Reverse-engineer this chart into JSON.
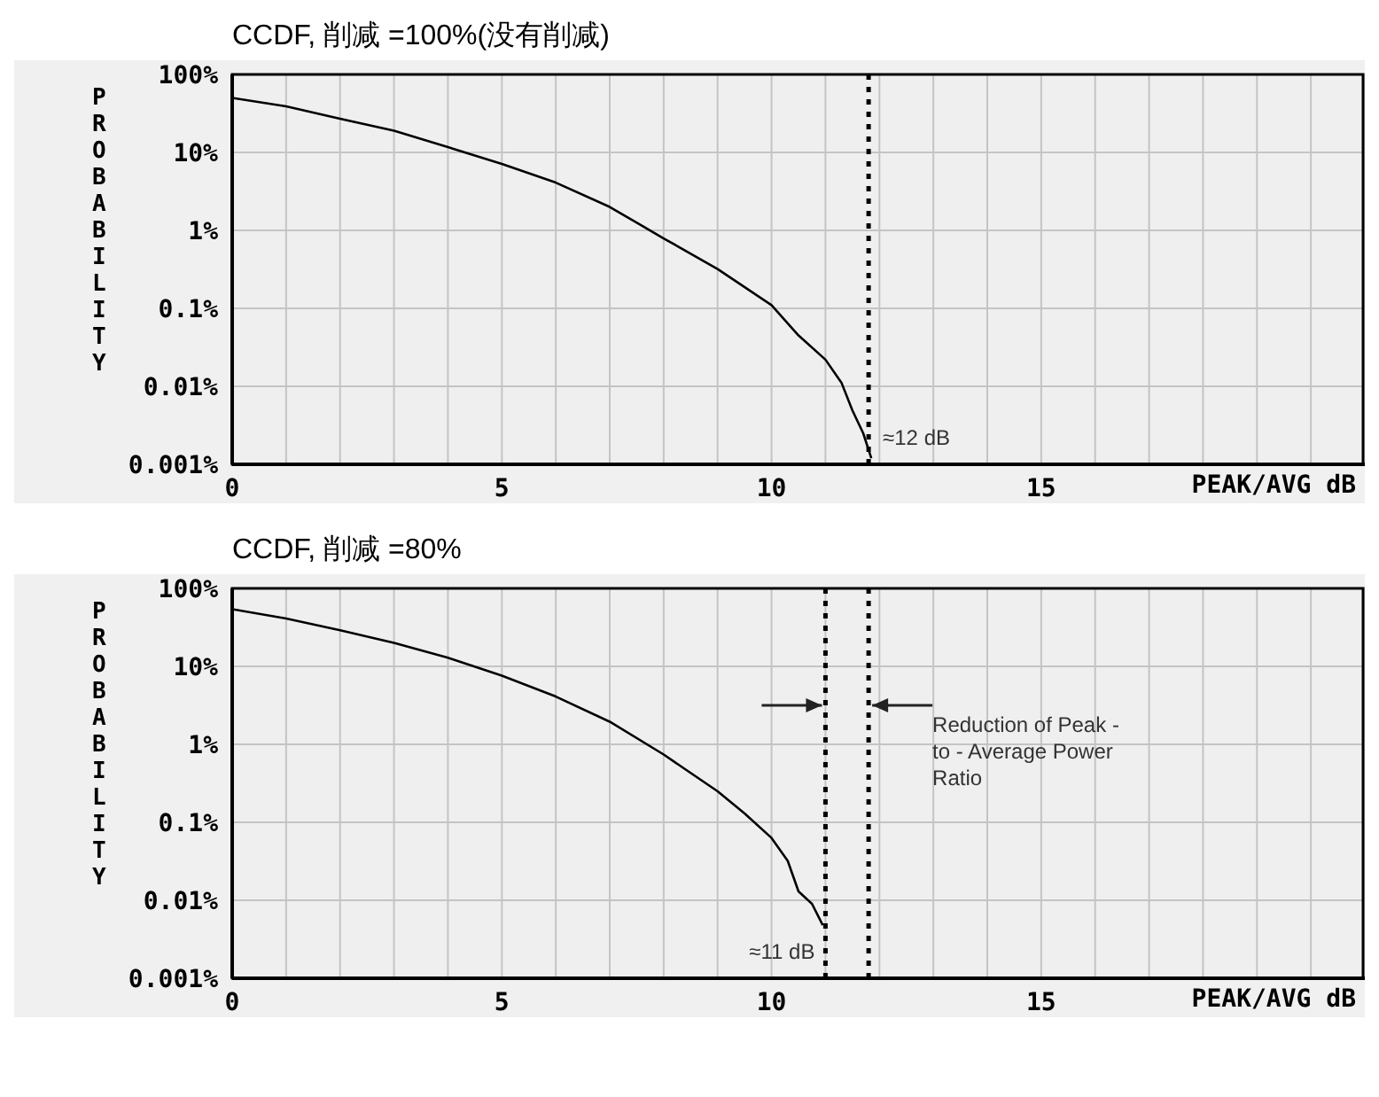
{
  "chart_data": [
    {
      "type": "line",
      "title": "CCDF, 削减 =100%(没有削减)",
      "xlabel": "PEAK/AVG dB",
      "ylabel": "PROBABILITY",
      "log": "y",
      "grid": true,
      "marker": "none",
      "line_style": "solid",
      "xlim": [
        0,
        21
      ],
      "xticks": [
        0,
        {
          "value": 1,
          "label": null
        },
        {
          "value": 2,
          "label": null
        },
        {
          "value": 3,
          "label": null
        },
        {
          "value": 4,
          "label": null
        },
        5,
        {
          "value": 6,
          "label": null
        },
        {
          "value": 7,
          "label": null
        },
        {
          "value": 8,
          "label": null
        },
        {
          "value": 9,
          "label": null
        },
        10,
        {
          "value": 11,
          "label": null
        },
        {
          "value": 12,
          "label": null
        },
        {
          "value": 13,
          "label": null
        },
        {
          "value": 14,
          "label": null
        },
        15,
        {
          "value": 16,
          "label": null
        },
        {
          "value": 17,
          "label": null
        },
        {
          "value": 18,
          "label": null
        },
        {
          "value": 19,
          "label": null
        },
        {
          "value": 20,
          "label": null
        }
      ],
      "ylim": [
        0.001,
        100
      ],
      "yticks": [
        {
          "value": 0.001,
          "label": "0.001%"
        },
        {
          "value": 0.01,
          "label": "0.01%"
        },
        {
          "value": 0.1,
          "label": "0.1%"
        },
        {
          "value": 1,
          "label": "1%"
        },
        {
          "value": 10,
          "label": "10%"
        },
        {
          "value": 100,
          "label": "100%"
        }
      ],
      "series": [
        {
          "color": "#000000",
          "x": [
            0,
            1,
            2,
            3,
            4,
            5,
            6,
            7,
            8,
            9,
            10,
            10.5,
            11,
            11.3,
            11.5,
            11.7,
            11.85
          ],
          "values": [
            50,
            39,
            27,
            19,
            11.7,
            7.1,
            4.1,
            2,
            0.79,
            0.32,
            0.11,
            0.045,
            0.022,
            0.011,
            0.0049,
            0.0025,
            0.0012
          ]
        }
      ],
      "ref_lines": [
        {
          "axis": "x",
          "value": 11.8,
          "color": "#000000",
          "line_style": "dashed"
        }
      ],
      "annotations": [
        {
          "text": "≈12 dB",
          "x": 11.8,
          "y": 0.002
        }
      ]
    },
    {
      "type": "line",
      "title": "CCDF, 削减 =80%",
      "xlabel": "PEAK/AVG dB",
      "ylabel": "PROBABILITY",
      "log": "y",
      "grid": true,
      "marker": "none",
      "line_style": "solid",
      "xlim": [
        0,
        21
      ],
      "xticks": [
        0,
        {
          "value": 1,
          "label": null
        },
        {
          "value": 2,
          "label": null
        },
        {
          "value": 3,
          "label": null
        },
        {
          "value": 4,
          "label": null
        },
        5,
        {
          "value": 6,
          "label": null
        },
        {
          "value": 7,
          "label": null
        },
        {
          "value": 8,
          "label": null
        },
        {
          "value": 9,
          "label": null
        },
        10,
        {
          "value": 11,
          "label": null
        },
        {
          "value": 12,
          "label": null
        },
        {
          "value": 13,
          "label": null
        },
        {
          "value": 14,
          "label": null
        },
        15,
        {
          "value": 16,
          "label": null
        },
        {
          "value": 17,
          "label": null
        },
        {
          "value": 18,
          "label": null
        },
        {
          "value": 19,
          "label": null
        },
        {
          "value": 20,
          "label": null
        }
      ],
      "ylim": [
        0.001,
        100
      ],
      "yticks": [
        {
          "value": 0.001,
          "label": "0.001%"
        },
        {
          "value": 0.01,
          "label": "0.01%"
        },
        {
          "value": 0.1,
          "label": "0.1%"
        },
        {
          "value": 1,
          "label": "1%"
        },
        {
          "value": 10,
          "label": "10%"
        },
        {
          "value": 100,
          "label": "100%"
        }
      ],
      "series": [
        {
          "color": "#000000",
          "x": [
            0,
            1,
            2,
            3,
            4,
            5,
            6,
            7,
            8,
            9,
            9.5,
            10,
            10.3,
            10.5,
            10.75,
            10.95
          ],
          "values": [
            54,
            41,
            29,
            20,
            12.9,
            7.6,
            4.1,
            1.95,
            0.74,
            0.25,
            0.13,
            0.063,
            0.032,
            0.013,
            0.009,
            0.0048
          ]
        }
      ],
      "ref_lines": [
        {
          "axis": "x",
          "value": 11.0,
          "color": "#000000",
          "line_style": "dashed"
        },
        {
          "axis": "x",
          "value": 11.8,
          "color": "#000000",
          "line_style": "dashed"
        }
      ],
      "annotations": [
        {
          "text": "≈11 dB",
          "x": 11.0,
          "y": 0.002
        },
        "Reduction of Peak - to - Average Power Ratio"
      ]
    }
  ]
}
